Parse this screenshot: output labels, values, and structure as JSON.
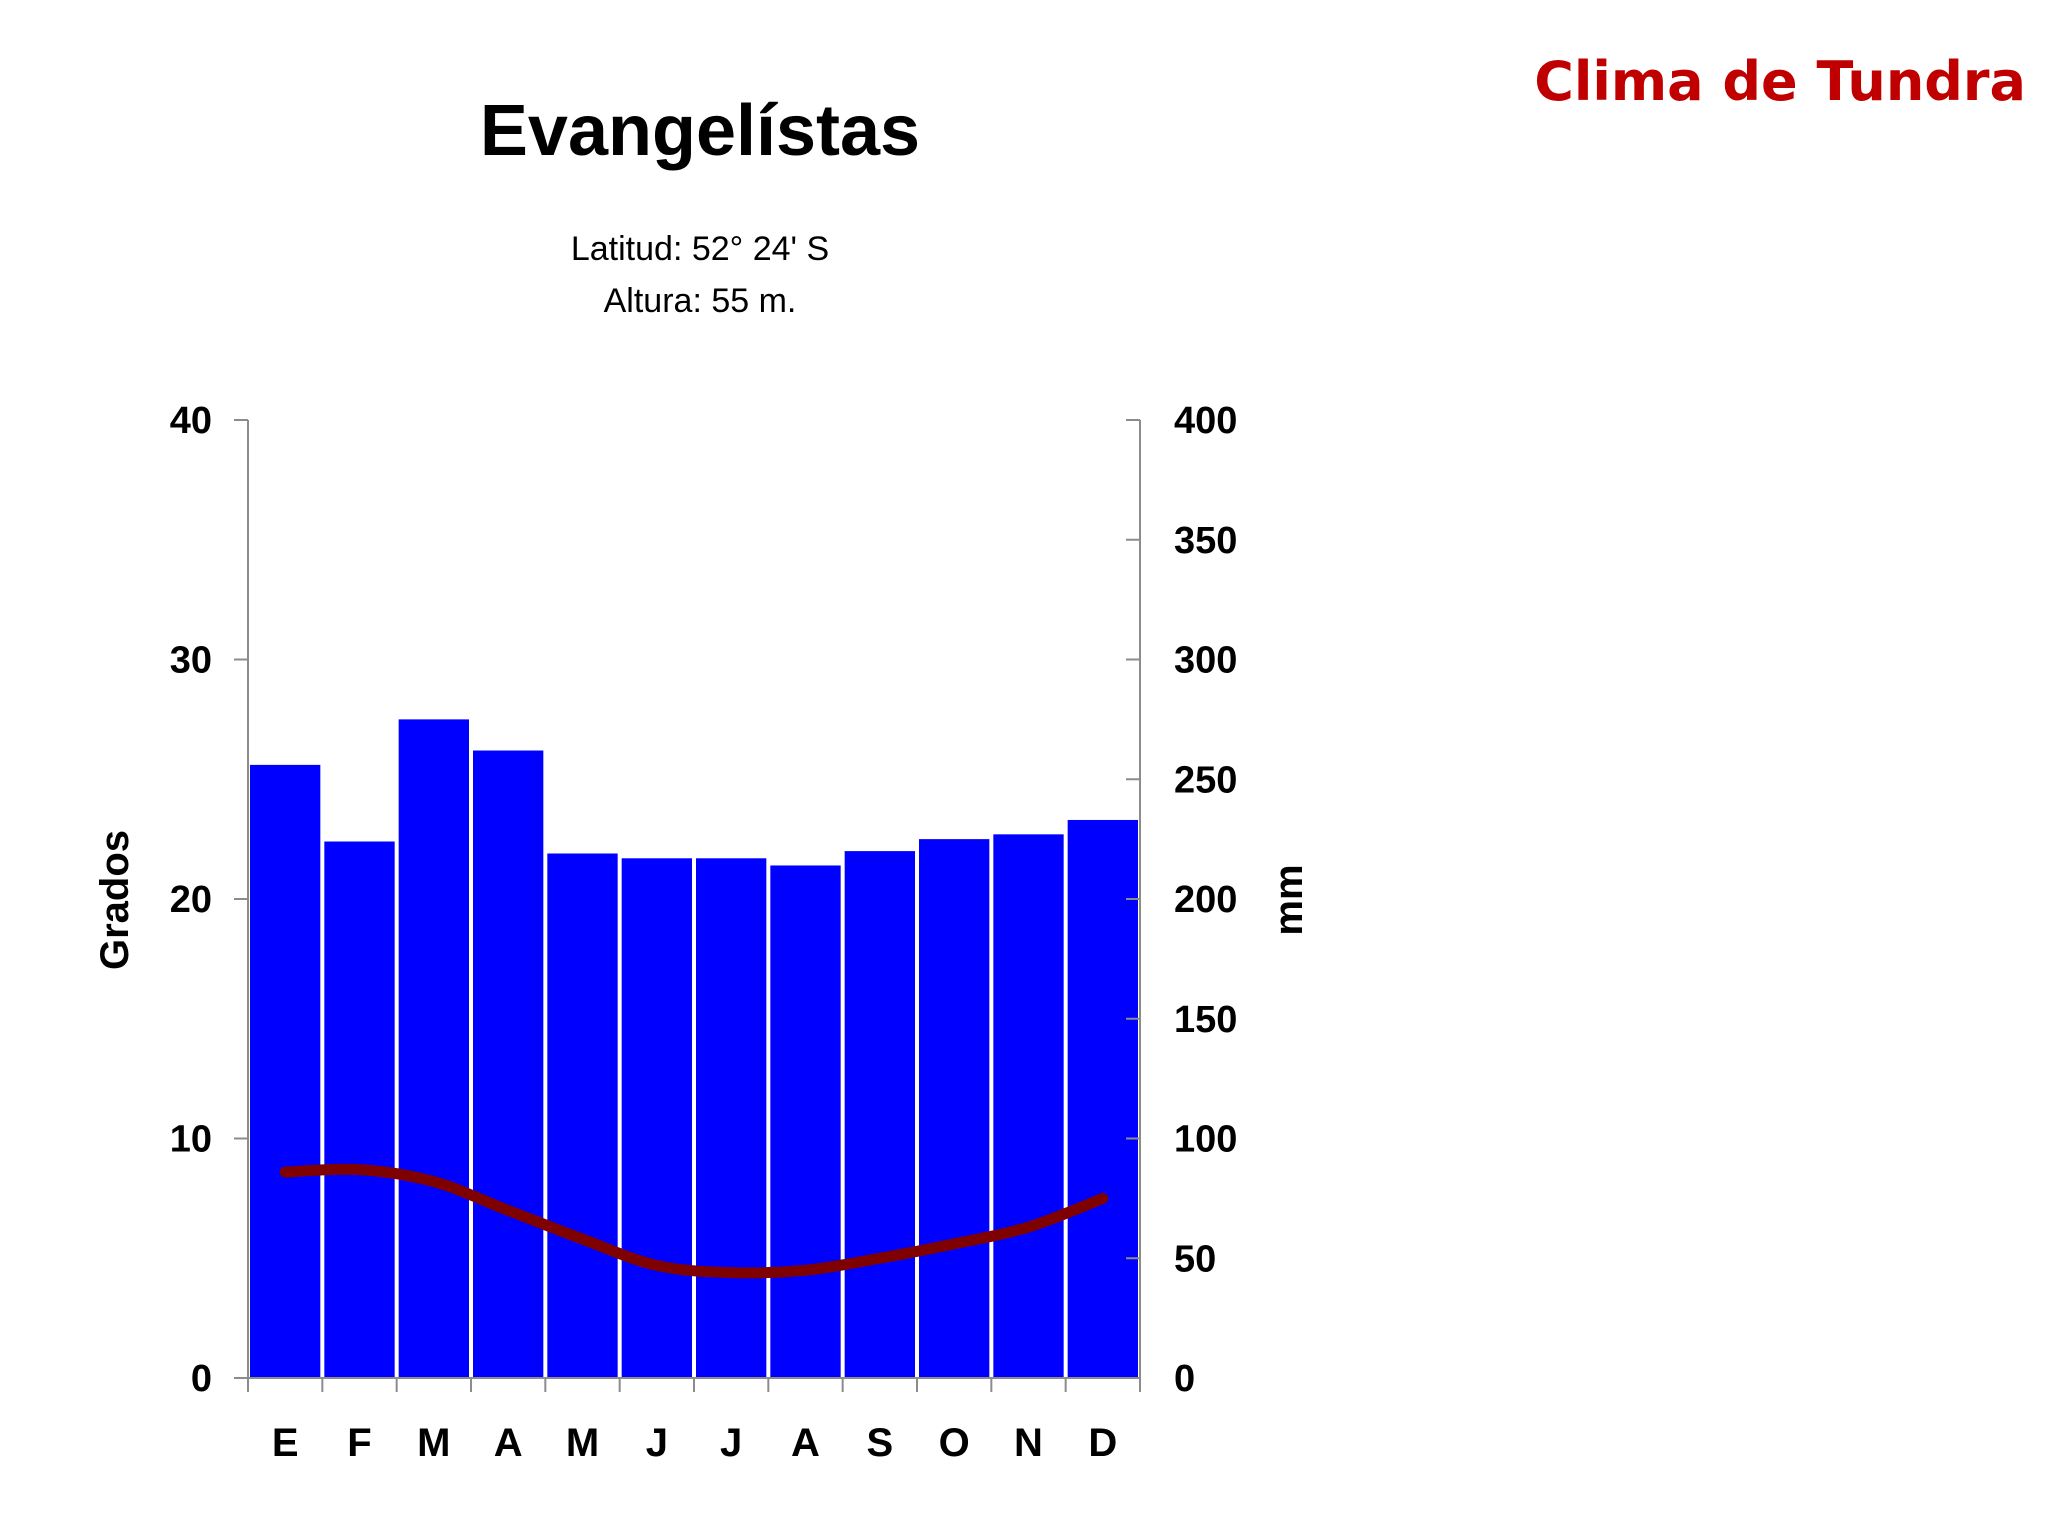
{
  "page_heading": "Clima de Tundra",
  "chart_data": {
    "type": "bar",
    "title": "Evangelístas",
    "subtitle_lines": [
      "Latitud: 52° 24' S",
      "Altura: 55 m."
    ],
    "categories": [
      "E",
      "F",
      "M",
      "A",
      "M",
      "J",
      "J",
      "A",
      "S",
      "O",
      "N",
      "D"
    ],
    "ylabel_left": "Grados",
    "ylabel_right": "mm",
    "ylim_left": [
      0,
      40
    ],
    "ylim_right": [
      0,
      400
    ],
    "yticks_left": [
      "0",
      "10",
      "20",
      "30",
      "40"
    ],
    "yticks_right": [
      "0",
      "50",
      "100",
      "150",
      "200",
      "250",
      "300",
      "350",
      "400"
    ],
    "grid": false,
    "series": [
      {
        "type": "bar",
        "axis": "right",
        "color": "#0000ff",
        "values": [
          256,
          224,
          275,
          262,
          219,
          217,
          217,
          214,
          220,
          225,
          227,
          233
        ]
      },
      {
        "type": "line",
        "axis": "left",
        "color": "#7f0000",
        "values": [
          8.6,
          8.7,
          8.2,
          7.0,
          5.8,
          4.7,
          4.4,
          4.5,
          5.0,
          5.6,
          6.3,
          7.5
        ]
      }
    ]
  }
}
